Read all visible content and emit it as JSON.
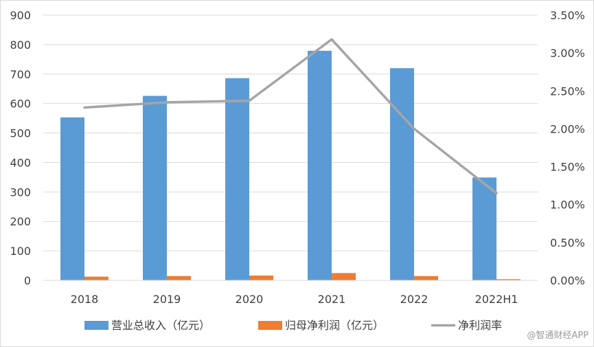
{
  "chart_data": {
    "type": "bar",
    "categories": [
      "2018",
      "2019",
      "2020",
      "2021",
      "2022",
      "2022H1"
    ],
    "series": [
      {
        "name": "营业总收入（亿元）",
        "type": "bar",
        "axis": "left",
        "color": "#5B9BD5",
        "values": [
          553,
          626,
          686,
          779,
          720,
          349
        ]
      },
      {
        "name": "归母净利润（亿元）",
        "type": "bar",
        "axis": "left",
        "color": "#ED7D31",
        "values": [
          12.6,
          14.6,
          16.3,
          24.7,
          14.5,
          4.0
        ]
      },
      {
        "name": "净利润率",
        "type": "line",
        "axis": "right",
        "color": "#A5A5A5",
        "values": [
          2.28,
          2.35,
          2.37,
          3.18,
          2.0,
          1.15
        ]
      }
    ],
    "y_left": {
      "ylim": [
        0,
        900
      ],
      "ticks": [
        "0",
        "100",
        "200",
        "300",
        "400",
        "500",
        "600",
        "700",
        "800",
        "900"
      ]
    },
    "y_right": {
      "ylim": [
        0,
        3.5
      ],
      "ticks": [
        "0.00%",
        "0.50%",
        "1.00%",
        "1.50%",
        "2.00%",
        "2.50%",
        "3.00%",
        "3.50%"
      ]
    },
    "grid": true,
    "legend": "bottom"
  },
  "watermark": "@智通财经APP"
}
